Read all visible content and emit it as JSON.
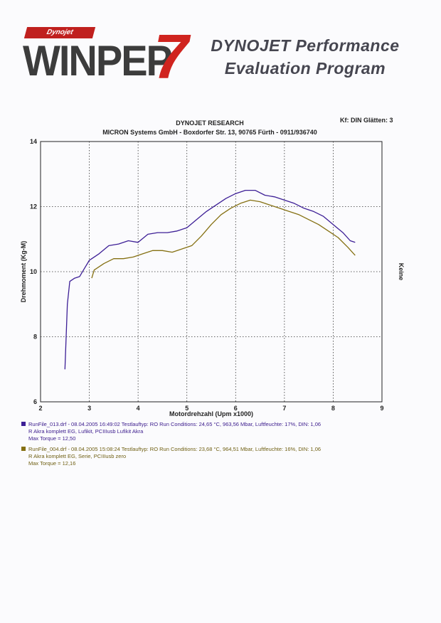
{
  "logo": {
    "brand": "Dynojet",
    "word": "WINPEP",
    "version": "7"
  },
  "headline": {
    "line1": "DYNOJET Performance",
    "line2": "Evaluation Program"
  },
  "header": {
    "company": "DYNOJET RESEARCH",
    "address": "MICRON Systems GmbH - Boxdorfer Str. 13, 90765 Fürth - 0911/936740",
    "settings": "Kf: DIN  Glätten: 3"
  },
  "colors": {
    "run1": "#3d1f96",
    "run2": "#857012"
  },
  "chart_data": {
    "type": "line",
    "xlabel": "Motordrehzahl (Upm x1000)",
    "ylabel": "Drehmoment (Kg-M)",
    "right_label": "Keine",
    "xlim": [
      2,
      9
    ],
    "ylim": [
      6,
      14
    ],
    "x_ticks": [
      2,
      3,
      4,
      5,
      6,
      7,
      8,
      9
    ],
    "y_ticks": [
      6,
      8,
      10,
      12,
      14
    ],
    "grid": true,
    "series": [
      {
        "name": "RunFile_013.drf",
        "color": "#3d1f96",
        "points": [
          [
            2.5,
            7.0
          ],
          [
            2.55,
            9.0
          ],
          [
            2.6,
            9.7
          ],
          [
            2.7,
            9.8
          ],
          [
            2.8,
            9.85
          ],
          [
            2.9,
            10.1
          ],
          [
            3.0,
            10.35
          ],
          [
            3.2,
            10.55
          ],
          [
            3.4,
            10.8
          ],
          [
            3.6,
            10.85
          ],
          [
            3.8,
            10.95
          ],
          [
            4.0,
            10.9
          ],
          [
            4.2,
            11.15
          ],
          [
            4.4,
            11.2
          ],
          [
            4.6,
            11.2
          ],
          [
            4.8,
            11.25
          ],
          [
            5.0,
            11.35
          ],
          [
            5.2,
            11.6
          ],
          [
            5.4,
            11.85
          ],
          [
            5.6,
            12.05
          ],
          [
            5.8,
            12.25
          ],
          [
            6.0,
            12.4
          ],
          [
            6.2,
            12.5
          ],
          [
            6.4,
            12.5
          ],
          [
            6.6,
            12.35
          ],
          [
            6.8,
            12.3
          ],
          [
            7.0,
            12.2
          ],
          [
            7.2,
            12.1
          ],
          [
            7.4,
            11.95
          ],
          [
            7.6,
            11.85
          ],
          [
            7.8,
            11.7
          ],
          [
            8.0,
            11.45
          ],
          [
            8.2,
            11.2
          ],
          [
            8.35,
            10.95
          ],
          [
            8.45,
            10.9
          ]
        ]
      },
      {
        "name": "RunFile_004.drf",
        "color": "#857012",
        "points": [
          [
            3.05,
            9.8
          ],
          [
            3.1,
            10.05
          ],
          [
            3.3,
            10.25
          ],
          [
            3.5,
            10.4
          ],
          [
            3.7,
            10.4
          ],
          [
            3.9,
            10.45
          ],
          [
            4.1,
            10.55
          ],
          [
            4.3,
            10.65
          ],
          [
            4.5,
            10.65
          ],
          [
            4.7,
            10.6
          ],
          [
            4.9,
            10.7
          ],
          [
            5.1,
            10.8
          ],
          [
            5.3,
            11.1
          ],
          [
            5.5,
            11.45
          ],
          [
            5.7,
            11.75
          ],
          [
            5.9,
            11.95
          ],
          [
            6.1,
            12.1
          ],
          [
            6.3,
            12.2
          ],
          [
            6.5,
            12.15
          ],
          [
            6.7,
            12.05
          ],
          [
            6.9,
            11.95
          ],
          [
            7.1,
            11.85
          ],
          [
            7.3,
            11.75
          ],
          [
            7.5,
            11.6
          ],
          [
            7.7,
            11.45
          ],
          [
            7.9,
            11.25
          ],
          [
            8.1,
            11.05
          ],
          [
            8.3,
            10.75
          ],
          [
            8.45,
            10.5
          ]
        ]
      }
    ]
  },
  "legend": {
    "run1": {
      "line1": "RunFile_013.drf - 08.04.2005 16:49:02  Testlauftyp: RO  Run Conditions: 24,65 °C, 963,56 Mbar,  Luftfeuchte: 17%, DIN: 1,06",
      "line2": "R Akra komplett EG, Lufikit, PCIIIusb Lufikit Akra",
      "line3": "Max Torque = 12,50"
    },
    "run2": {
      "line1": "RunFile_004.drf - 08.04.2005 15:08:24  Testlauftyp: RO  Run Conditions: 23,68 °C, 964,51 Mbar,  Luftfeuchte: 16%, DIN: 1,06",
      "line2": "R Akra komplett EG, Serie, PCIIIusb zero",
      "line3": "Max Torque = 12,16"
    }
  }
}
